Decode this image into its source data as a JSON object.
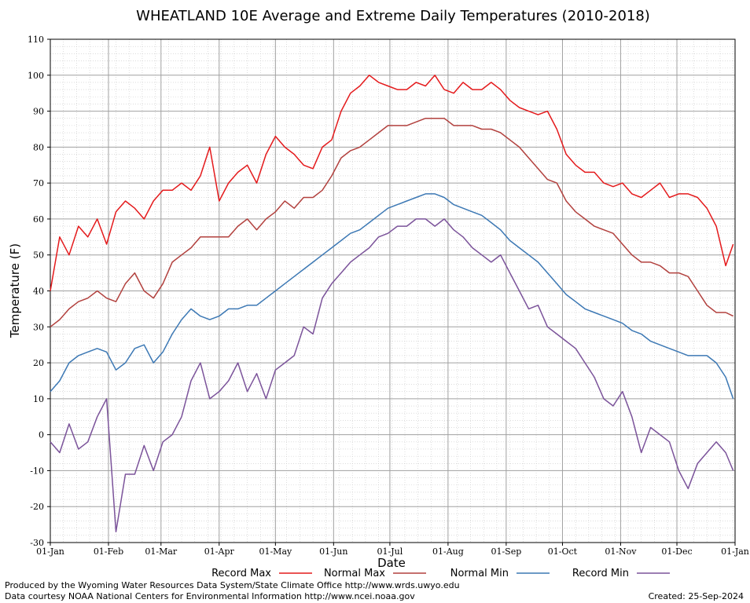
{
  "chart_data": {
    "type": "line",
    "title": "WHEATLAND 10E Average and Extreme Daily Temperatures (2010-2018)",
    "xlabel": "Date",
    "ylabel": "Temperature (F)",
    "ylim": [
      -30,
      110
    ],
    "yticks": [
      -30,
      -20,
      -10,
      0,
      10,
      20,
      30,
      40,
      50,
      60,
      70,
      80,
      90,
      100,
      110
    ],
    "x_tick_labels": [
      "01-Jan",
      "01-Feb",
      "01-Mar",
      "01-Apr",
      "01-May",
      "01-Jun",
      "01-Jul",
      "01-Aug",
      "01-Sep",
      "01-Oct",
      "01-Nov",
      "01-Dec",
      "01-Jan"
    ],
    "x_tick_days": [
      1,
      32,
      60,
      91,
      121,
      152,
      182,
      213,
      244,
      274,
      305,
      335,
      366
    ],
    "grid": true,
    "legend_position": "bottom",
    "series": [
      {
        "name": "Record Max",
        "color": "#e41a1c",
        "x": [
          1,
          6,
          11,
          16,
          21,
          26,
          31,
          36,
          41,
          46,
          51,
          56,
          61,
          66,
          71,
          76,
          81,
          86,
          91,
          96,
          101,
          106,
          111,
          116,
          121,
          126,
          131,
          136,
          141,
          146,
          151,
          156,
          161,
          166,
          171,
          176,
          181,
          186,
          191,
          196,
          201,
          206,
          211,
          216,
          221,
          226,
          231,
          236,
          241,
          246,
          251,
          256,
          261,
          266,
          271,
          276,
          281,
          286,
          291,
          296,
          301,
          306,
          311,
          316,
          321,
          326,
          331,
          336,
          341,
          346,
          351,
          356,
          361,
          365
        ],
        "values": [
          40,
          55,
          50,
          58,
          55,
          60,
          53,
          62,
          65,
          63,
          60,
          65,
          68,
          68,
          70,
          68,
          72,
          80,
          65,
          70,
          73,
          75,
          70,
          78,
          83,
          80,
          78,
          75,
          74,
          80,
          82,
          90,
          95,
          97,
          100,
          98,
          97,
          96,
          96,
          98,
          97,
          100,
          96,
          95,
          98,
          96,
          96,
          98,
          96,
          93,
          91,
          90,
          89,
          90,
          85,
          78,
          75,
          73,
          73,
          70,
          69,
          70,
          67,
          66,
          68,
          70,
          66,
          67,
          67,
          66,
          63,
          58,
          47,
          53
        ]
      },
      {
        "name": "Normal Max",
        "color": "#b2413e",
        "x": [
          1,
          6,
          11,
          16,
          21,
          26,
          31,
          36,
          41,
          46,
          51,
          56,
          61,
          66,
          71,
          76,
          81,
          86,
          91,
          96,
          101,
          106,
          111,
          116,
          121,
          126,
          131,
          136,
          141,
          146,
          151,
          156,
          161,
          166,
          171,
          176,
          181,
          186,
          191,
          196,
          201,
          206,
          211,
          216,
          221,
          226,
          231,
          236,
          241,
          246,
          251,
          256,
          261,
          266,
          271,
          276,
          281,
          286,
          291,
          296,
          301,
          306,
          311,
          316,
          321,
          326,
          331,
          336,
          341,
          346,
          351,
          356,
          361,
          365
        ],
        "values": [
          30,
          32,
          35,
          37,
          38,
          40,
          38,
          37,
          42,
          45,
          40,
          38,
          42,
          48,
          50,
          52,
          55,
          55,
          55,
          55,
          58,
          60,
          57,
          60,
          62,
          65,
          63,
          66,
          66,
          68,
          72,
          77,
          79,
          80,
          82,
          84,
          86,
          86,
          86,
          87,
          88,
          88,
          88,
          86,
          86,
          86,
          85,
          85,
          84,
          82,
          80,
          77,
          74,
          71,
          70,
          65,
          62,
          60,
          58,
          57,
          56,
          53,
          50,
          48,
          48,
          47,
          45,
          45,
          44,
          40,
          36,
          34,
          34,
          33
        ]
      },
      {
        "name": "Normal Min",
        "color": "#3c78b4",
        "x": [
          1,
          6,
          11,
          16,
          21,
          26,
          31,
          36,
          41,
          46,
          51,
          56,
          61,
          66,
          71,
          76,
          81,
          86,
          91,
          96,
          101,
          106,
          111,
          116,
          121,
          126,
          131,
          136,
          141,
          146,
          151,
          156,
          161,
          166,
          171,
          176,
          181,
          186,
          191,
          196,
          201,
          206,
          211,
          216,
          221,
          226,
          231,
          236,
          241,
          246,
          251,
          256,
          261,
          266,
          271,
          276,
          281,
          286,
          291,
          296,
          301,
          306,
          311,
          316,
          321,
          326,
          331,
          336,
          341,
          346,
          351,
          356,
          361,
          365
        ],
        "values": [
          12,
          15,
          20,
          22,
          23,
          24,
          23,
          18,
          20,
          24,
          25,
          20,
          23,
          28,
          32,
          35,
          33,
          32,
          33,
          35,
          35,
          36,
          36,
          38,
          40,
          42,
          44,
          46,
          48,
          50,
          52,
          54,
          56,
          57,
          59,
          61,
          63,
          64,
          65,
          66,
          67,
          67,
          66,
          64,
          63,
          62,
          61,
          59,
          57,
          54,
          52,
          50,
          48,
          45,
          42,
          39,
          37,
          35,
          34,
          33,
          32,
          31,
          29,
          28,
          26,
          25,
          24,
          23,
          22,
          22,
          22,
          20,
          16,
          10
        ]
      },
      {
        "name": "Record Min",
        "color": "#7b539a",
        "x": [
          1,
          6,
          11,
          16,
          21,
          26,
          31,
          36,
          41,
          46,
          51,
          56,
          61,
          66,
          71,
          76,
          81,
          86,
          91,
          96,
          101,
          106,
          111,
          116,
          121,
          126,
          131,
          136,
          141,
          146,
          151,
          156,
          161,
          166,
          171,
          176,
          181,
          186,
          191,
          196,
          201,
          206,
          211,
          216,
          221,
          226,
          231,
          236,
          241,
          246,
          251,
          256,
          261,
          266,
          271,
          276,
          281,
          286,
          291,
          296,
          301,
          306,
          311,
          316,
          321,
          326,
          331,
          336,
          341,
          346,
          351,
          356,
          361,
          365
        ],
        "values": [
          -2,
          -5,
          3,
          -4,
          -2,
          5,
          10,
          -27,
          -11,
          -11,
          -3,
          -10,
          -2,
          0,
          5,
          15,
          20,
          10,
          12,
          15,
          20,
          12,
          17,
          10,
          18,
          20,
          22,
          30,
          28,
          38,
          42,
          45,
          48,
          50,
          52,
          55,
          56,
          58,
          58,
          60,
          60,
          58,
          60,
          57,
          55,
          52,
          50,
          48,
          50,
          45,
          40,
          35,
          36,
          30,
          28,
          26,
          24,
          20,
          16,
          10,
          8,
          12,
          5,
          -5,
          2,
          0,
          -2,
          -10,
          -15,
          -8,
          -5,
          -2,
          -5,
          -10
        ]
      }
    ]
  },
  "footer": {
    "producer": "Produced by the Wyoming Water Resources Data System/State Climate Office http://www.wrds.uwyo.edu",
    "source": "Data courtesy NOAA National Centers for Environmental Information http://www.ncei.noaa.gov",
    "created": "Created:  25-Sep-2024"
  }
}
